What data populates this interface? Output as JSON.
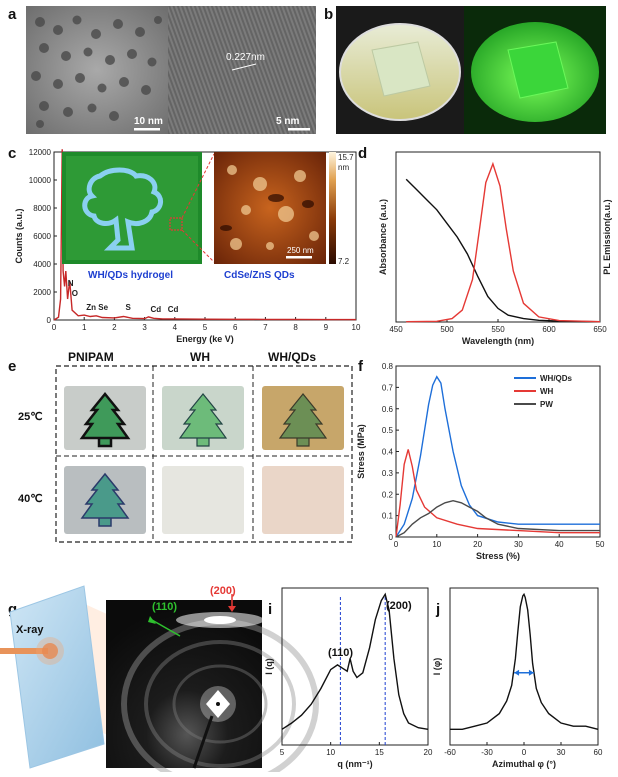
{
  "panels": {
    "a": {
      "letter": "a",
      "scale1": "10 nm",
      "scale2": "5 nm",
      "spacing": "0.227nm"
    },
    "b": {
      "letter": "b"
    },
    "c": {
      "letter": "c",
      "inset_caption1": "WH/QDs hydrogel",
      "inset_caption2": "CdSe/ZnS QDs",
      "afm_scale": "250 nm",
      "colorbar_max": "15.7",
      "colorbar_unit": "nm",
      "colorbar_min": "7.2",
      "peaks": [
        "C",
        "N",
        "O",
        "Zn",
        "Se",
        "S",
        "Cd",
        "Cd"
      ]
    },
    "d": {
      "letter": "d"
    },
    "e": {
      "letter": "e",
      "cols": [
        "PNIPAM",
        "WH",
        "WH/QDs"
      ],
      "rows": [
        "25℃",
        "40℃"
      ]
    },
    "f": {
      "letter": "f"
    },
    "g": {
      "letter": "g",
      "xray": "X-ray"
    },
    "h": {
      "letter": "h",
      "ring1": "(110)",
      "ring2": "(200)"
    },
    "i": {
      "letter": "i",
      "peak1": "(110)",
      "peak2": "(200)"
    },
    "j": {
      "letter": "j"
    }
  },
  "chart_data": [
    {
      "panel": "c",
      "type": "line",
      "xlabel": "Energy (ke V)",
      "ylabel": "Counts (a.u.)",
      "xlim": [
        0,
        10
      ],
      "ylim": [
        0,
        12000
      ],
      "xticks": [
        0,
        1,
        2,
        3,
        4,
        5,
        6,
        7,
        8,
        9,
        10
      ],
      "yticks": [
        0,
        2000,
        4000,
        6000,
        8000,
        10000,
        12000
      ],
      "color": "#c62828",
      "x": [
        0,
        0.15,
        0.22,
        0.27,
        0.3,
        0.35,
        0.39,
        0.45,
        0.52,
        0.6,
        0.8,
        1.0,
        1.2,
        1.4,
        1.6,
        2.0,
        2.3,
        2.6,
        3.0,
        3.13,
        3.3,
        3.6,
        4.0,
        5,
        6,
        7,
        8,
        9,
        10
      ],
      "y": [
        0,
        200,
        1500,
        12200,
        3500,
        2400,
        3500,
        1500,
        2800,
        700,
        300,
        350,
        250,
        300,
        180,
        150,
        250,
        120,
        100,
        220,
        120,
        80,
        80,
        60,
        50,
        40,
        40,
        30,
        30
      ]
    },
    {
      "panel": "d",
      "type": "line",
      "xlabel": "Wavelength (nm)",
      "ylabel": "Absorbance (a.u.)",
      "y2label": "PL Emission(a.u.)",
      "xlim": [
        450,
        650
      ],
      "ylim": [
        0,
        1
      ],
      "xticks": [
        450,
        500,
        550,
        600,
        650
      ],
      "series": [
        {
          "name": "",
          "color": "#111111",
          "x": [
            460,
            470,
            480,
            490,
            500,
            510,
            520,
            530,
            540,
            550,
            560,
            575,
            590,
            610,
            630,
            650
          ],
          "y": [
            0.84,
            0.78,
            0.72,
            0.66,
            0.58,
            0.5,
            0.4,
            0.27,
            0.15,
            0.08,
            0.04,
            0.02,
            0.01,
            0.005,
            0.003,
            0.002
          ]
        },
        {
          "name": "",
          "color": "#e53935",
          "x": [
            460,
            490,
            505,
            515,
            525,
            532,
            538,
            545,
            552,
            558,
            565,
            575,
            590,
            610,
            650
          ],
          "y": [
            0.002,
            0.004,
            0.02,
            0.07,
            0.25,
            0.55,
            0.82,
            0.93,
            0.8,
            0.55,
            0.3,
            0.11,
            0.03,
            0.008,
            0.002
          ]
        }
      ]
    },
    {
      "panel": "f",
      "type": "line",
      "xlabel": "Stress (%)",
      "ylabel": "Stress (MPa)",
      "xlim": [
        0,
        50
      ],
      "ylim": [
        0,
        0.8
      ],
      "xticks": [
        0,
        10,
        20,
        30,
        40,
        50
      ],
      "yticks": [
        0.0,
        0.1,
        0.2,
        0.3,
        0.4,
        0.5,
        0.6,
        0.7,
        0.8
      ],
      "series": [
        {
          "name": "WH/QDs",
          "color": "#1e6fd9",
          "x": [
            0,
            2,
            4,
            6,
            8,
            9,
            10,
            11,
            12,
            14,
            16,
            18,
            20,
            25,
            30,
            40,
            50
          ],
          "y": [
            0,
            0.06,
            0.18,
            0.38,
            0.62,
            0.71,
            0.75,
            0.72,
            0.6,
            0.4,
            0.24,
            0.15,
            0.1,
            0.07,
            0.06,
            0.06,
            0.06
          ]
        },
        {
          "name": "WH",
          "color": "#e53935",
          "x": [
            0,
            1,
            2,
            3,
            4,
            5,
            7,
            10,
            15,
            20,
            30,
            40,
            50
          ],
          "y": [
            0,
            0.15,
            0.34,
            0.41,
            0.33,
            0.22,
            0.14,
            0.09,
            0.06,
            0.04,
            0.03,
            0.02,
            0.02
          ]
        },
        {
          "name": "PW",
          "color": "#4a4a4a",
          "x": [
            0,
            2,
            4,
            6,
            8,
            10,
            12,
            14,
            16,
            18,
            20,
            22,
            25,
            30,
            40,
            50
          ],
          "y": [
            0,
            0.02,
            0.06,
            0.09,
            0.11,
            0.14,
            0.16,
            0.17,
            0.16,
            0.14,
            0.12,
            0.09,
            0.06,
            0.04,
            0.03,
            0.03
          ]
        }
      ]
    },
    {
      "panel": "i",
      "type": "line",
      "xlabel": "q (nm⁻¹)",
      "ylabel": "I (q)",
      "xlim": [
        5,
        20
      ],
      "ylim": [
        0,
        1
      ],
      "xticks": [
        5,
        10,
        15,
        20
      ],
      "vlines": [
        11,
        15.6
      ],
      "color": "#111111",
      "x": [
        5,
        6,
        7,
        8,
        9,
        10,
        10.7,
        11.2,
        11.7,
        12,
        12.3,
        12.7,
        13.3,
        14,
        14.6,
        15.2,
        15.6,
        16,
        16.5,
        17,
        17.5,
        18,
        19,
        20
      ],
      "y": [
        0.1,
        0.14,
        0.19,
        0.26,
        0.36,
        0.48,
        0.51,
        0.49,
        0.47,
        0.55,
        0.47,
        0.43,
        0.46,
        0.62,
        0.8,
        0.92,
        0.96,
        0.86,
        0.55,
        0.32,
        0.2,
        0.14,
        0.11,
        0.1
      ]
    },
    {
      "panel": "j",
      "type": "line",
      "xlabel": "Azimuthal φ (°)",
      "ylabel": "I (φ)",
      "xlim": [
        -60,
        60
      ],
      "ylim": [
        0,
        1
      ],
      "xticks": [
        -60,
        -30,
        0,
        30,
        60
      ],
      "color": "#111111",
      "x": [
        -60,
        -50,
        -40,
        -30,
        -20,
        -14,
        -10,
        -7,
        -5,
        -3,
        -1,
        0,
        1,
        3,
        5,
        7,
        10,
        14,
        20,
        30,
        40,
        50,
        60
      ],
      "y": [
        0.1,
        0.1,
        0.12,
        0.14,
        0.2,
        0.28,
        0.38,
        0.55,
        0.72,
        0.88,
        0.95,
        0.96,
        0.94,
        0.86,
        0.7,
        0.52,
        0.36,
        0.27,
        0.2,
        0.14,
        0.12,
        0.12,
        0.1
      ]
    }
  ]
}
